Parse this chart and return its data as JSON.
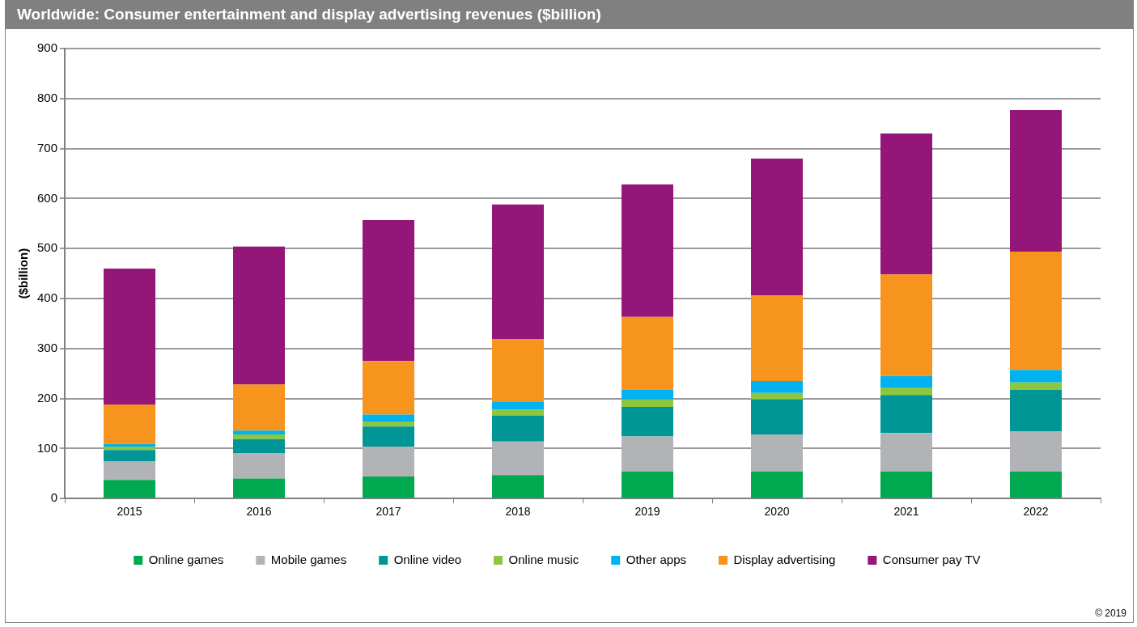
{
  "chart_data": {
    "type": "bar",
    "title": "Worldwide: Consumer entertainment and display advertising revenues ($billion)",
    "ylabel": "($billion)",
    "categories": [
      "2015",
      "2016",
      "2017",
      "2018",
      "2019",
      "2020",
      "2021",
      "2022"
    ],
    "stacked": true,
    "ylim": [
      0,
      900
    ],
    "yticks": [
      0,
      100,
      200,
      300,
      400,
      500,
      600,
      700,
      800,
      900
    ],
    "grid": "y",
    "legend": "bottom",
    "annotations": [
      "© 2019"
    ],
    "series": [
      {
        "name": "Online games",
        "color": "#00a94f",
        "values": [
          37,
          40,
          44,
          47,
          54,
          54,
          54,
          54
        ]
      },
      {
        "name": "Mobile games",
        "color": "#b1b3b6",
        "values": [
          37,
          51,
          60,
          67,
          70,
          74,
          77,
          80
        ]
      },
      {
        "name": "Online video",
        "color": "#009696",
        "values": [
          23,
          28,
          40,
          52,
          59,
          70,
          76,
          83
        ]
      },
      {
        "name": "Online music",
        "color": "#8dc63f",
        "values": [
          7,
          9,
          10,
          12,
          15,
          13,
          15,
          15
        ]
      },
      {
        "name": "Other apps",
        "color": "#00b2ef",
        "values": [
          5,
          8,
          14,
          15,
          20,
          24,
          23,
          25
        ]
      },
      {
        "name": "Display advertising",
        "color": "#f7941d",
        "values": [
          79,
          92,
          107,
          126,
          145,
          171,
          203,
          237
        ]
      },
      {
        "name": "Consumer pay TV",
        "color": "#951679",
        "values": [
          272,
          276,
          282,
          269,
          265,
          274,
          282,
          283
        ]
      }
    ]
  }
}
